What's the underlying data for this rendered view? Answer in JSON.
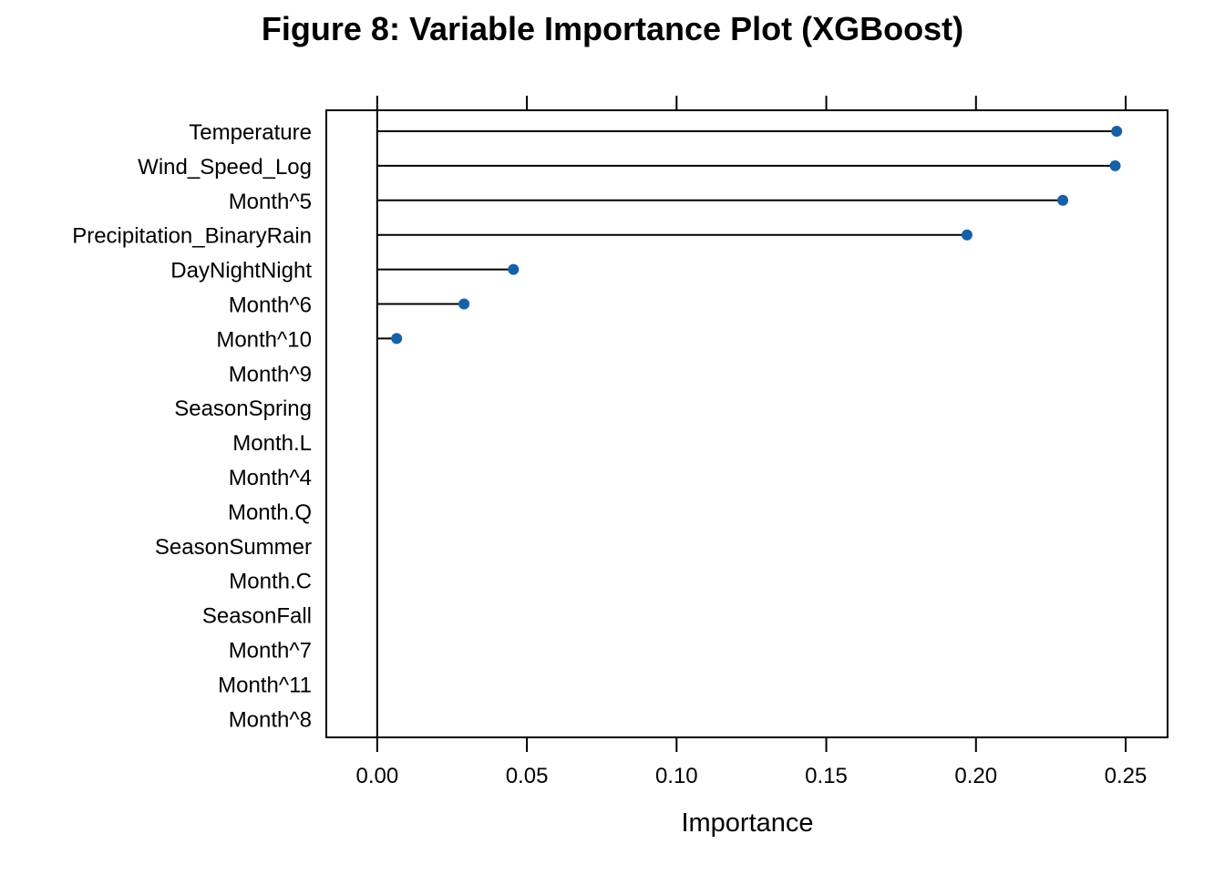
{
  "chart_data": {
    "type": "lollipop",
    "title": "Figure 8: Variable Importance Plot (XGBoost)",
    "xlabel": "Importance",
    "ylabel": "",
    "xlim": [
      -0.017,
      0.264
    ],
    "x_ticks": [
      0.0,
      0.05,
      0.1,
      0.15,
      0.2,
      0.25
    ],
    "x_tick_labels": [
      "0.00",
      "0.05",
      "0.10",
      "0.15",
      "0.20",
      "0.25"
    ],
    "point_color": "#1660a8",
    "categories": [
      "Temperature",
      "Wind_Speed_Log",
      "Month^5",
      "Precipitation_BinaryRain",
      "DayNightNight",
      "Month^6",
      "Month^10",
      "Month^9",
      "SeasonSpring",
      "Month.L",
      "Month^4",
      "Month.Q",
      "SeasonSummer",
      "Month.C",
      "SeasonFall",
      "Month^7",
      "Month^11",
      "Month^8"
    ],
    "values": [
      0.247,
      0.2465,
      0.229,
      0.197,
      0.0455,
      0.029,
      0.0065,
      0,
      0,
      0,
      0,
      0,
      0,
      0,
      0,
      0,
      0,
      0
    ]
  }
}
